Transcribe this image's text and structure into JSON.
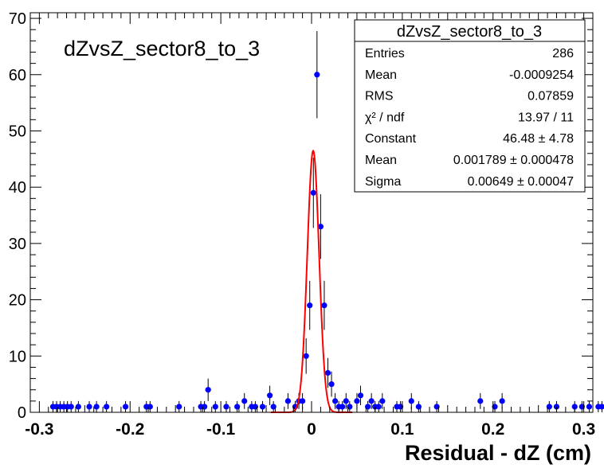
{
  "chart_data": {
    "type": "scatter",
    "title": "dZvsZ_sector8_to_3",
    "xlabel": "Residual - dZ (cm)",
    "ylabel": "",
    "xlim": [
      -0.31,
      0.31
    ],
    "ylim": [
      0,
      71
    ],
    "grid": false,
    "xticks": [
      -0.3,
      -0.2,
      -0.1,
      0,
      0.1,
      0.2,
      0.3
    ],
    "xtick_labels": [
      "-0.3",
      "-0.2",
      "-0.1",
      "0",
      "0.1",
      "0.2",
      "0.3"
    ],
    "yticks": [
      0,
      10,
      20,
      30,
      40,
      50,
      60,
      70
    ],
    "ytick_labels": [
      "0",
      "10",
      "20",
      "30",
      "40",
      "50",
      "60",
      "70"
    ],
    "series": [
      {
        "kind": "points-with-errorbars",
        "color": "#0000ff",
        "points": [
          [
            -0.285,
            1
          ],
          [
            -0.281,
            1
          ],
          [
            -0.277,
            1
          ],
          [
            -0.273,
            1
          ],
          [
            -0.269,
            1
          ],
          [
            -0.265,
            1
          ],
          [
            -0.257,
            1
          ],
          [
            -0.245,
            1
          ],
          [
            -0.237,
            1
          ],
          [
            -0.226,
            1
          ],
          [
            -0.205,
            1
          ],
          [
            -0.182,
            1
          ],
          [
            -0.178,
            1
          ],
          [
            -0.146,
            1
          ],
          [
            -0.122,
            1
          ],
          [
            -0.118,
            1
          ],
          [
            -0.114,
            4
          ],
          [
            -0.106,
            1
          ],
          [
            -0.094,
            1
          ],
          [
            -0.082,
            1
          ],
          [
            -0.074,
            2
          ],
          [
            -0.066,
            1
          ],
          [
            -0.062,
            1
          ],
          [
            -0.054,
            1
          ],
          [
            -0.046,
            3
          ],
          [
            -0.042,
            1
          ],
          [
            -0.026,
            2
          ],
          [
            -0.018,
            1
          ],
          [
            -0.014,
            2
          ],
          [
            -0.01,
            2
          ],
          [
            -0.006,
            10
          ],
          [
            -0.002,
            19
          ],
          [
            0.002,
            39
          ],
          [
            0.006,
            60
          ],
          [
            0.01,
            33
          ],
          [
            0.014,
            19
          ],
          [
            0.018,
            7
          ],
          [
            0.022,
            5
          ],
          [
            0.026,
            2
          ],
          [
            0.03,
            1
          ],
          [
            0.034,
            1
          ],
          [
            0.038,
            2
          ],
          [
            0.042,
            1
          ],
          [
            0.05,
            2
          ],
          [
            0.054,
            3
          ],
          [
            0.062,
            1
          ],
          [
            0.066,
            2
          ],
          [
            0.07,
            1
          ],
          [
            0.074,
            1
          ],
          [
            0.078,
            2
          ],
          [
            0.094,
            1
          ],
          [
            0.098,
            1
          ],
          [
            0.11,
            2
          ],
          [
            0.118,
            1
          ],
          [
            0.138,
            1
          ],
          [
            0.186,
            2
          ],
          [
            0.202,
            1
          ],
          [
            0.21,
            2
          ],
          [
            0.262,
            1
          ],
          [
            0.27,
            1
          ],
          [
            0.29,
            1
          ],
          [
            0.298,
            1
          ],
          [
            0.306,
            1
          ],
          [
            0.316,
            1
          ],
          [
            0.32,
            1
          ]
        ]
      },
      {
        "kind": "gaussian-fit",
        "color": "#ff0000",
        "constant": 46.48,
        "mean": 0.001789,
        "sigma": 0.00649
      }
    ],
    "stats_box": {
      "title": "dZvsZ_sector8_to_3",
      "rows": [
        {
          "label": "Entries",
          "value": "286"
        },
        {
          "label": "Mean",
          "value": "-0.0009254"
        },
        {
          "label": "RMS",
          "value": "0.07859"
        },
        {
          "label": "χ² / ndf",
          "value": "13.97 / 11"
        },
        {
          "label": "Constant",
          "value": "46.48 ± 4.78"
        },
        {
          "label": "Mean",
          "value": "0.001789 ± 0.000478"
        },
        {
          "label": "Sigma",
          "value": "0.00649 ± 0.00047"
        }
      ]
    }
  }
}
